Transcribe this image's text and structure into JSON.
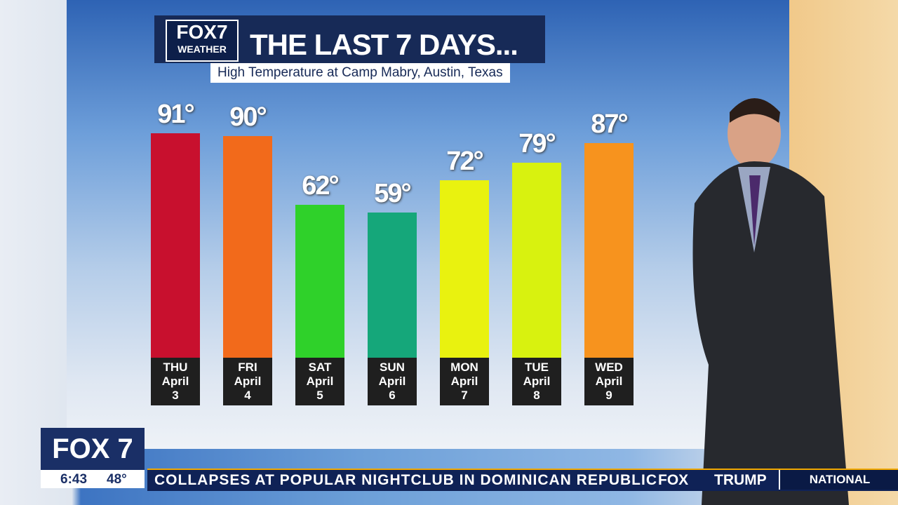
{
  "chart_data": {
    "type": "bar",
    "title": "THE LAST 7 DAYS...",
    "subtitle": "High Temperature at Camp Mabry, Austin, Texas",
    "categories": [
      "THU\nApril\n3",
      "FRI\nApril\n4",
      "SAT\nApril\n5",
      "SUN\nApril\n6",
      "MON\nApril\n7",
      "TUE\nApril\n8",
      "WED\nApril\n9"
    ],
    "values": [
      91,
      90,
      62,
      59,
      72,
      79,
      87
    ],
    "value_labels": [
      "91°",
      "90°",
      "62°",
      "59°",
      "72°",
      "79°",
      "87°"
    ],
    "colors": [
      "#c8102e",
      "#f26a1b",
      "#2fd12a",
      "#15a77a",
      "#e9f20f",
      "#d8f20f",
      "#f7931e"
    ]
  },
  "logo": {
    "brand": "FOX7",
    "sub": "WEATHER"
  },
  "lower_third": {
    "station": "FOX 7",
    "time": "6:43",
    "temp": "48°",
    "ticker": "COLLAPSES AT POPULAR NIGHTCLUB IN DOMINICAN REPUBLIC",
    "ticker_brand": "FOX",
    "ticker_next": "TRUMP",
    "section": "NATIONAL"
  }
}
